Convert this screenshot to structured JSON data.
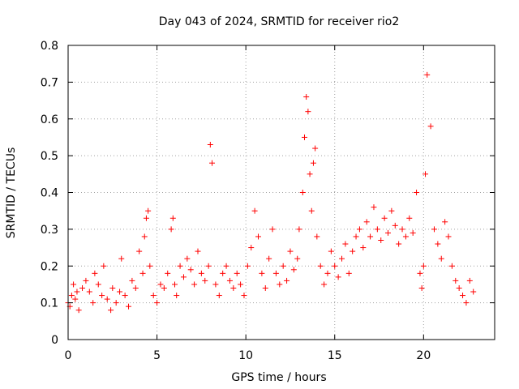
{
  "chart_data": {
    "type": "scatter",
    "title": "Day 043 of 2024, SRMTID for receiver rio2",
    "xlabel": "GPS time / hours",
    "ylabel": "SRMTID / TECUs",
    "xlim": [
      0,
      24
    ],
    "ylim": [
      0,
      0.8
    ],
    "xticks": [
      0,
      5,
      10,
      15,
      20
    ],
    "xtick_labels": [
      "0",
      "5",
      "10",
      "15",
      "20"
    ],
    "yticks": [
      0,
      0.1,
      0.2,
      0.3,
      0.4,
      0.5,
      0.6,
      0.7,
      0.8
    ],
    "ytick_labels": [
      "0",
      "0.1",
      "0.2",
      "0.3",
      "0.4",
      "0.5",
      "0.6",
      "0.7",
      "0.8"
    ],
    "grid": true,
    "marker": "+",
    "marker_color": "#ff0000",
    "series": [
      {
        "name": "SRMTID",
        "x": [
          0.0,
          0.1,
          0.2,
          0.3,
          0.4,
          0.5,
          0.6,
          0.8,
          1.0,
          1.2,
          1.4,
          1.5,
          1.7,
          1.9,
          2.0,
          2.2,
          2.4,
          2.5,
          2.7,
          2.9,
          3.0,
          3.2,
          3.4,
          3.6,
          3.8,
          4.0,
          4.2,
          4.3,
          4.4,
          4.5,
          4.6,
          4.8,
          5.0,
          5.2,
          5.4,
          5.6,
          5.8,
          5.9,
          6.0,
          6.1,
          6.3,
          6.5,
          6.7,
          6.9,
          7.1,
          7.3,
          7.5,
          7.7,
          7.9,
          8.0,
          8.1,
          8.3,
          8.5,
          8.7,
          8.9,
          9.1,
          9.3,
          9.5,
          9.7,
          9.9,
          10.1,
          10.3,
          10.5,
          10.7,
          10.9,
          11.1,
          11.3,
          11.5,
          11.7,
          11.9,
          12.1,
          12.3,
          12.5,
          12.7,
          12.9,
          13.0,
          13.2,
          13.3,
          13.4,
          13.5,
          13.6,
          13.7,
          13.8,
          13.9,
          14.0,
          14.2,
          14.4,
          14.6,
          14.8,
          15.0,
          15.2,
          15.4,
          15.6,
          15.8,
          16.0,
          16.2,
          16.4,
          16.6,
          16.8,
          17.0,
          17.2,
          17.4,
          17.6,
          17.8,
          18.0,
          18.2,
          18.4,
          18.6,
          18.8,
          19.0,
          19.2,
          19.4,
          19.6,
          19.8,
          19.9,
          20.0,
          20.1,
          20.2,
          20.4,
          20.6,
          20.8,
          21.0,
          21.2,
          21.4,
          21.6,
          21.8,
          22.0,
          22.2,
          22.4,
          22.6,
          22.8
        ],
        "y": [
          0.1,
          0.09,
          0.12,
          0.15,
          0.11,
          0.13,
          0.08,
          0.14,
          0.16,
          0.13,
          0.1,
          0.18,
          0.15,
          0.12,
          0.2,
          0.11,
          0.08,
          0.14,
          0.1,
          0.13,
          0.22,
          0.12,
          0.09,
          0.16,
          0.14,
          0.24,
          0.18,
          0.28,
          0.33,
          0.35,
          0.2,
          0.12,
          0.1,
          0.15,
          0.14,
          0.18,
          0.3,
          0.33,
          0.15,
          0.12,
          0.2,
          0.17,
          0.22,
          0.19,
          0.15,
          0.24,
          0.18,
          0.16,
          0.2,
          0.53,
          0.48,
          0.15,
          0.12,
          0.18,
          0.2,
          0.16,
          0.14,
          0.18,
          0.15,
          0.12,
          0.2,
          0.25,
          0.35,
          0.28,
          0.18,
          0.14,
          0.22,
          0.3,
          0.18,
          0.15,
          0.2,
          0.16,
          0.24,
          0.19,
          0.22,
          0.3,
          0.4,
          0.55,
          0.66,
          0.62,
          0.45,
          0.35,
          0.48,
          0.52,
          0.28,
          0.2,
          0.15,
          0.18,
          0.24,
          0.2,
          0.17,
          0.22,
          0.26,
          0.18,
          0.24,
          0.28,
          0.3,
          0.25,
          0.32,
          0.28,
          0.36,
          0.3,
          0.27,
          0.33,
          0.29,
          0.35,
          0.31,
          0.26,
          0.3,
          0.28,
          0.33,
          0.29,
          0.4,
          0.18,
          0.14,
          0.2,
          0.45,
          0.72,
          0.58,
          0.3,
          0.26,
          0.22,
          0.32,
          0.28,
          0.2,
          0.16,
          0.14,
          0.12,
          0.1,
          0.16,
          0.13
        ]
      }
    ]
  }
}
